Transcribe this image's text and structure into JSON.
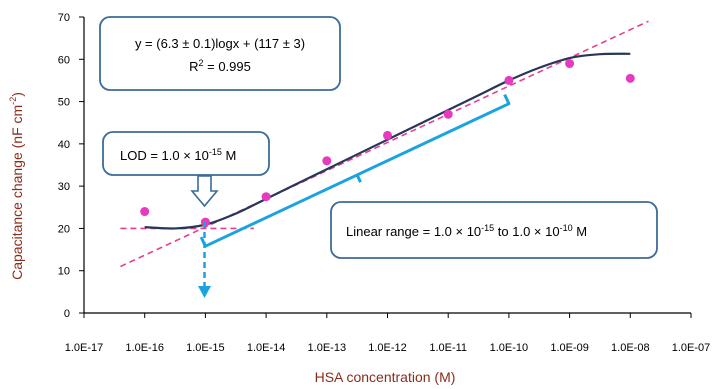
{
  "chart_data": {
    "type": "scatter",
    "xlabel": "HSA concentration  (M)",
    "ylabel": "Capacitance  change  (nF cm",
    "ylabel_sup": "-2",
    "ylabel_close": ")",
    "x_log_ticks": [
      "1.0E-17",
      "1.0E-16",
      "1.0E-15",
      "1.0E-14",
      "1.0E-13",
      "1.0E-12",
      "1.0E-11",
      "1.0E-10",
      "1.0E-09",
      "1.0E-08",
      "1.0E-07"
    ],
    "x_log_range": [
      -17,
      -7
    ],
    "ylim": [
      0,
      70
    ],
    "y_ticks": [
      0,
      10,
      20,
      30,
      40,
      50,
      60,
      70
    ],
    "points": [
      {
        "x": -16,
        "y": 24
      },
      {
        "x": -15,
        "y": 21.5
      },
      {
        "x": -14,
        "y": 27.5
      },
      {
        "x": -13,
        "y": 36
      },
      {
        "x": -12,
        "y": 42
      },
      {
        "x": -11,
        "y": 47
      },
      {
        "x": -10,
        "y": 55
      },
      {
        "x": -9,
        "y": 59
      },
      {
        "x": -8,
        "y": 55.5
      }
    ],
    "fit_curve": [
      [
        -16,
        20.3
      ],
      [
        -15.5,
        20
      ],
      [
        -15,
        20.9
      ],
      [
        -14.5,
        23.5
      ],
      [
        -14,
        27
      ],
      [
        -13.5,
        30.5
      ],
      [
        -13,
        34
      ],
      [
        -12.5,
        37.5
      ],
      [
        -12,
        41
      ],
      [
        -11.5,
        44.5
      ],
      [
        -11,
        48
      ],
      [
        -10.5,
        51.5
      ],
      [
        -10,
        55
      ],
      [
        -9.5,
        58
      ],
      [
        -9,
        60.3
      ],
      [
        -8.5,
        61.2
      ],
      [
        -8,
        61.3
      ]
    ],
    "linear_fit_line": [
      [
        -16.4,
        11
      ],
      [
        -7.7,
        69
      ]
    ],
    "lod_line": {
      "x_start": -16.4,
      "x_end": -14.2,
      "y": 20
    },
    "marker_color": "#e63bbf",
    "curve_color": "#27375a",
    "dashed_color": "#e4418c",
    "bracket_color": "#1aa3e0",
    "annotations": {
      "equation_line1": "y = (6.3 ± 0.1)logx + (117 ± 3)",
      "equation_line2": "R",
      "equation_line2_sup": "2",
      "equation_line2_rest": " = 0.995",
      "lod_text": "LOD = 1.0 × 10",
      "lod_sup": "-15",
      "lod_unit": " M",
      "linear_text": "Linear range = 1.0 × 10",
      "linear_sup1": "-15",
      "linear_mid": " to 1.0 × 10",
      "linear_sup2": "-10",
      "linear_unit": " M"
    }
  }
}
